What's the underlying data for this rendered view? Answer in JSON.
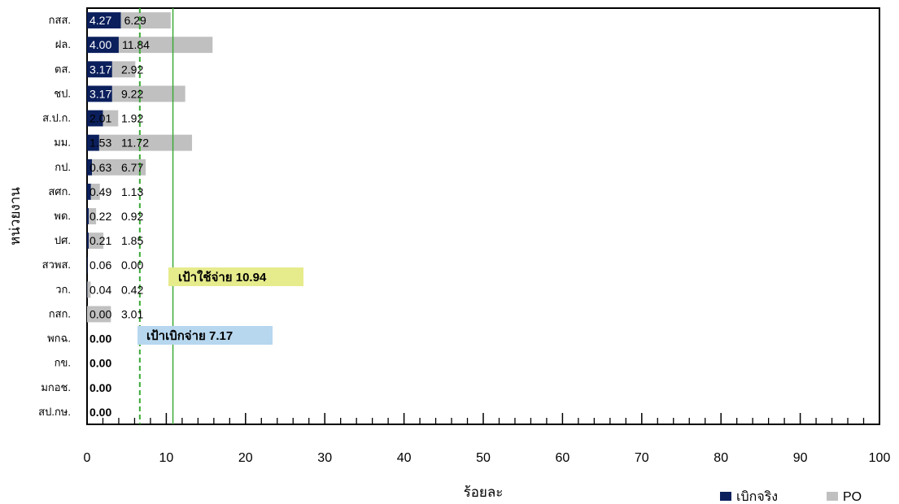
{
  "chart_data": {
    "type": "bar",
    "orientation": "horizontal",
    "stacked": true,
    "categories": [
      "กสส.",
      "ฝล.",
      "ตส.",
      "ชป.",
      "ส.ป.ก.",
      "มม.",
      "กป.",
      "สศก.",
      "พด.",
      "ปศ.",
      "สวพส.",
      "วก.",
      "กสก.",
      "พกฉ.",
      "กข.",
      "มกอช.",
      "สป.กษ."
    ],
    "series": [
      {
        "name": "เบิกจริง",
        "color": "#0b1f5c",
        "values": [
          4.27,
          4.0,
          3.17,
          3.17,
          2.01,
          1.53,
          0.63,
          0.49,
          0.22,
          0.21,
          0.06,
          0.04,
          0.0,
          0.0,
          0.0,
          0.0,
          0.0
        ]
      },
      {
        "name": "PO",
        "color": "#c0c0c0",
        "values": [
          6.29,
          11.84,
          2.92,
          9.22,
          1.92,
          11.72,
          6.77,
          1.13,
          0.92,
          1.85,
          0.0,
          0.42,
          3.01,
          null,
          null,
          null,
          null
        ]
      }
    ],
    "value_labels": {
      "actual": [
        "4.27",
        "4.00",
        "3.17",
        "3.17",
        "2.01",
        "1.53",
        "0.63",
        "0.49",
        "0.22",
        "0.21",
        "0.06",
        "0.04",
        "0.00",
        "0.00",
        "0.00",
        "0.00",
        "0.00"
      ],
      "po": [
        "6.29",
        "11.84",
        "2.92",
        "9.22",
        "1.92",
        "11.72",
        "6.77",
        "1.13",
        "0.92",
        "1.85",
        "0.00",
        "0.42",
        "3.01",
        "",
        "",
        "",
        ""
      ]
    },
    "xlim": [
      0,
      100
    ],
    "x_ticks": [
      "0",
      "10",
      "20",
      "30",
      "40",
      "50",
      "60",
      "70",
      "80",
      "90",
      "100"
    ],
    "xlabel": "ร้อยละ",
    "ylabel": "หน่วยงาน",
    "legend_position": "bottom-right",
    "grid": false,
    "reference_lines": [
      {
        "value": 10.94,
        "label": "เป้าใช้จ่าย 10.94",
        "style": "solid",
        "line_color": "#3aaa35",
        "label_bg": "#e6eb8c"
      },
      {
        "value": 7.17,
        "label": "เป้าเบิกจ่าย 7.17",
        "style": "dashed",
        "line_color": "#3aaa35",
        "label_bg": "#b7d7ef"
      }
    ]
  }
}
